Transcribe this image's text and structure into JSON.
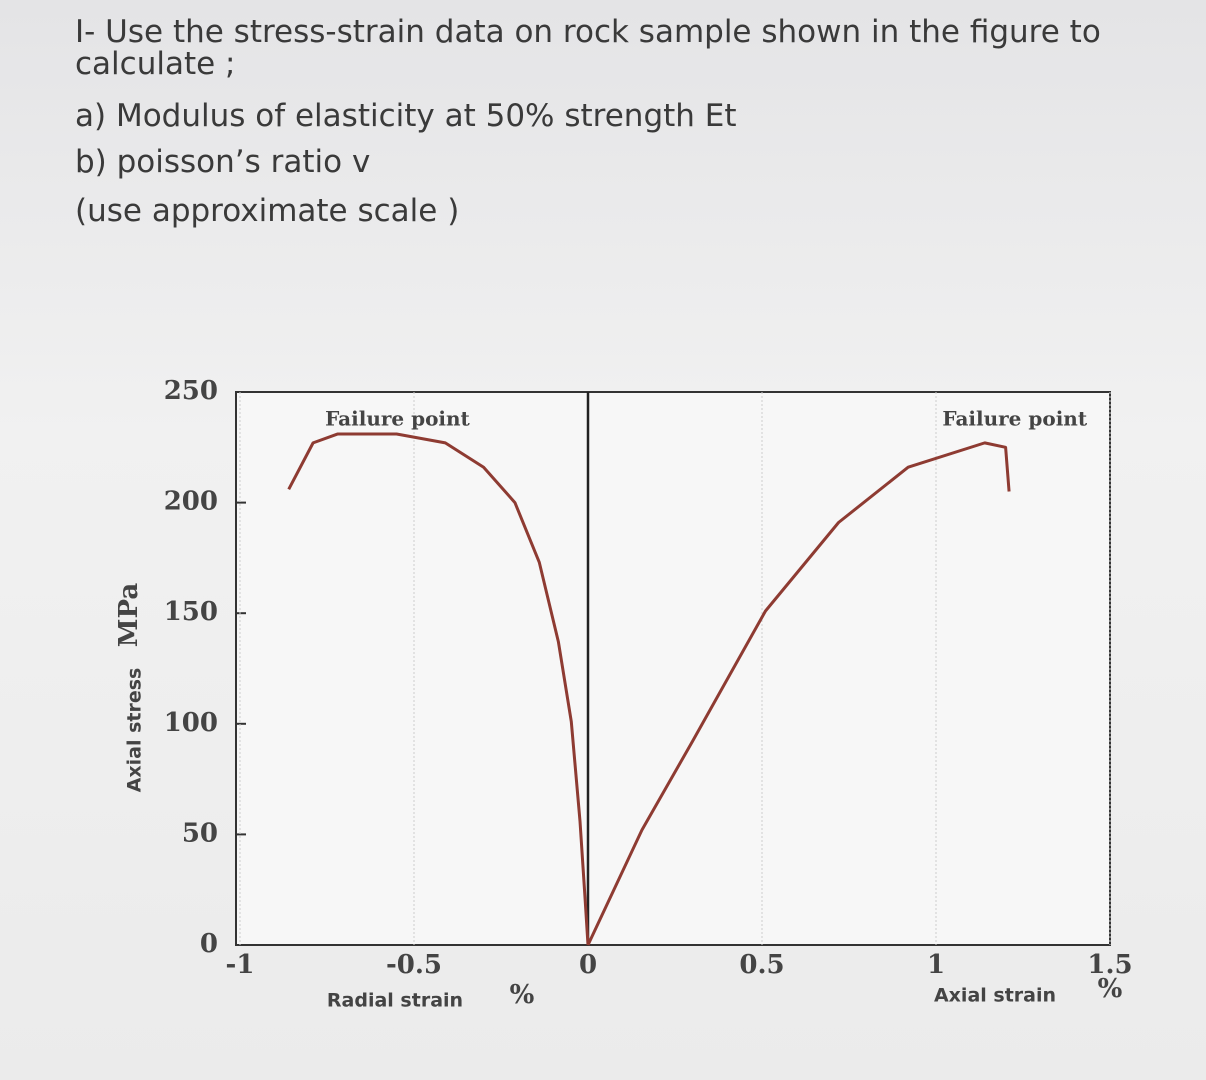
{
  "question": {
    "lines": [
      "I- Use the stress-strain data on rock sample  shown in the figure to",
      "calculate ;",
      "a) Modulus of elasticity at 50% strength Et",
      "b) poisson’s ratio v",
      "(use approximate scale )"
    ]
  },
  "chart_data": {
    "type": "line",
    "y_label": "Axial stress",
    "y_unit": "MPa",
    "radial_label": "Radial strain",
    "axial_label": "Axial strain",
    "x_unit": "%",
    "annotations": [
      "Failure point",
      "Failure point"
    ],
    "xlim": [
      -1,
      1.5
    ],
    "xticks": [
      -1,
      -0.5,
      0,
      0.5,
      1,
      1.5
    ],
    "ylim": [
      0,
      250
    ],
    "yticks": [
      0,
      50,
      100,
      150,
      200,
      250
    ],
    "series": [
      {
        "name": "Radial strain",
        "color": "#8e3b32",
        "x": [
          -0.86,
          -0.79,
          -0.72,
          -0.55,
          -0.41,
          -0.3,
          -0.21,
          -0.14,
          -0.085,
          -0.048,
          -0.023,
          -0.008,
          0
        ],
        "values": [
          206,
          227,
          231,
          231,
          227,
          216,
          200,
          173,
          137,
          101,
          56,
          20,
          0
        ]
      },
      {
        "name": "Axial strain",
        "color": "#8e3b32",
        "x": [
          0,
          0.155,
          0.3,
          0.51,
          0.72,
          0.92,
          1.14,
          1.2,
          1.21
        ],
        "values": [
          0,
          52,
          92,
          151,
          191,
          216,
          227,
          225,
          205
        ]
      }
    ]
  }
}
